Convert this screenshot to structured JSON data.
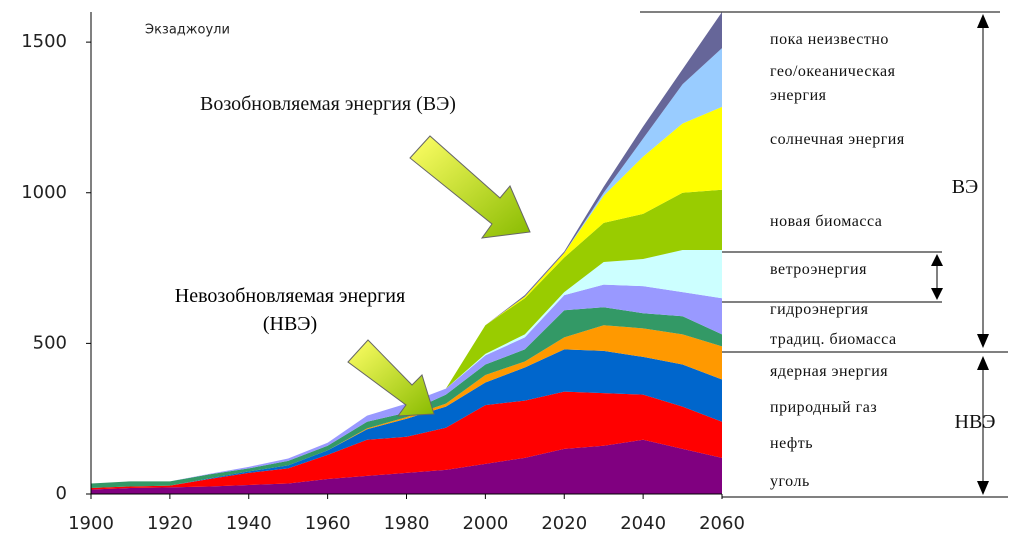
{
  "chart_data": {
    "type": "stacked_area",
    "y_axis_label": "Экзаджоули",
    "annotations": [
      "Возобновляемая энергия (ВЭ)",
      "Невозобновляемая энергия (НВЭ)",
      "ВЭ",
      "НВЭ"
    ],
    "x": [
      1900,
      1910,
      1920,
      1930,
      1940,
      1950,
      1960,
      1970,
      1980,
      1990,
      2000,
      2010,
      2020,
      2030,
      2040,
      2050,
      2060
    ],
    "xlim": [
      1900,
      2060
    ],
    "xticks": [
      1900,
      1920,
      1940,
      1960,
      1980,
      2000,
      2020,
      2040,
      2060
    ],
    "ylim": [
      0,
      1600
    ],
    "yticks": [
      0,
      500,
      1000,
      1500
    ],
    "series": [
      {
        "name": "уголь",
        "color": "#800080",
        "values": [
          15,
          20,
          22,
          25,
          30,
          35,
          50,
          60,
          70,
          80,
          100,
          120,
          150,
          160,
          180,
          150,
          120
        ]
      },
      {
        "name": "нефть",
        "color": "#ff0000",
        "values": [
          5,
          5,
          6,
          25,
          40,
          50,
          80,
          120,
          120,
          140,
          195,
          190,
          190,
          175,
          150,
          140,
          120
        ]
      },
      {
        "name": "природный газ",
        "color": "#0066cc",
        "values": [
          0,
          0,
          0,
          2,
          5,
          10,
          15,
          35,
          60,
          70,
          75,
          110,
          140,
          140,
          125,
          140,
          140
        ]
      },
      {
        "name": "ядерная энергия",
        "color": "#ff9900",
        "values": [
          0,
          0,
          0,
          0,
          0,
          0,
          0,
          3,
          5,
          10,
          25,
          20,
          40,
          85,
          95,
          100,
          110
        ]
      },
      {
        "name": "традиц. биомасса",
        "color": "#339966",
        "values": [
          15,
          17,
          14,
          13,
          10,
          15,
          15,
          22,
          15,
          30,
          35,
          40,
          90,
          60,
          50,
          60,
          40
        ]
      },
      {
        "name": "гидроэнергия",
        "color": "#9999ff",
        "values": [
          0,
          0,
          0,
          2,
          5,
          8,
          10,
          20,
          30,
          20,
          30,
          40,
          50,
          75,
          90,
          80,
          120
        ]
      },
      {
        "name": "ветроэнергия",
        "color": "#ccffff",
        "values": [
          0,
          0,
          0,
          0,
          0,
          0,
          0,
          0,
          0,
          0,
          5,
          10,
          10,
          75,
          90,
          140,
          160
        ]
      },
      {
        "name": "новая биомасса",
        "color": "#99cc00",
        "values": [
          0,
          0,
          0,
          0,
          0,
          0,
          0,
          0,
          0,
          0,
          95,
          120,
          115,
          130,
          150,
          190,
          200
        ]
      },
      {
        "name": "солнечная энергия",
        "color": "#ffff00",
        "values": [
          0,
          0,
          0,
          0,
          0,
          0,
          0,
          0,
          0,
          0,
          0,
          5,
          15,
          90,
          190,
          230,
          275
        ]
      },
      {
        "name": "гео/океаническая энергия",
        "color": "#99ccff",
        "values": [
          0,
          0,
          0,
          0,
          0,
          0,
          0,
          0,
          0,
          0,
          0,
          0,
          0,
          10,
          60,
          130,
          195
        ]
      },
      {
        "name": "пока неизвестно",
        "color": "#666699",
        "values": [
          0,
          0,
          0,
          0,
          0,
          0,
          0,
          0,
          0,
          0,
          0,
          5,
          5,
          20,
          40,
          50,
          120
        ]
      }
    ]
  }
}
